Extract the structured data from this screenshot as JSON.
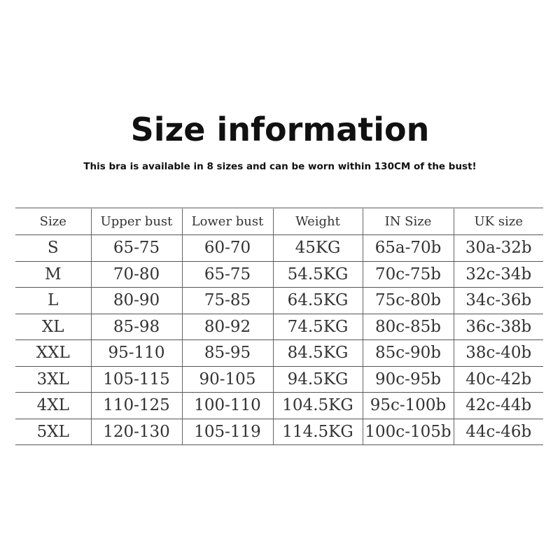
{
  "title": "Size information",
  "subtitle": "This bra is available in 8 sizes and can be worn within 130CM of the bust!",
  "table": {
    "headers": [
      "Size",
      "Upper bust",
      "Lower bust",
      "Weight",
      "IN Size",
      "UK size"
    ],
    "rows": [
      [
        "S",
        "65-75",
        "60-70",
        "45KG",
        "65a-70b",
        "30a-32b"
      ],
      [
        "M",
        "70-80",
        "65-75",
        "54.5KG",
        "70c-75b",
        "32c-34b"
      ],
      [
        "L",
        "80-90",
        "75-85",
        "64.5KG",
        "75c-80b",
        "34c-36b"
      ],
      [
        "XL",
        "85-98",
        "80-92",
        "74.5KG",
        "80c-85b",
        "36c-38b"
      ],
      [
        "XXL",
        "95-110",
        "85-95",
        "84.5KG",
        "85c-90b",
        "38c-40b"
      ],
      [
        "3XL",
        "105-115",
        "90-105",
        "94.5KG",
        "90c-95b",
        "40c-42b"
      ],
      [
        "4XL",
        "110-125",
        "100-110",
        "104.5KG",
        "95c-100b",
        "42c-44b"
      ],
      [
        "5XL",
        "120-130",
        "105-119",
        "114.5KG",
        "100c-105b",
        "44c-46b"
      ]
    ]
  }
}
